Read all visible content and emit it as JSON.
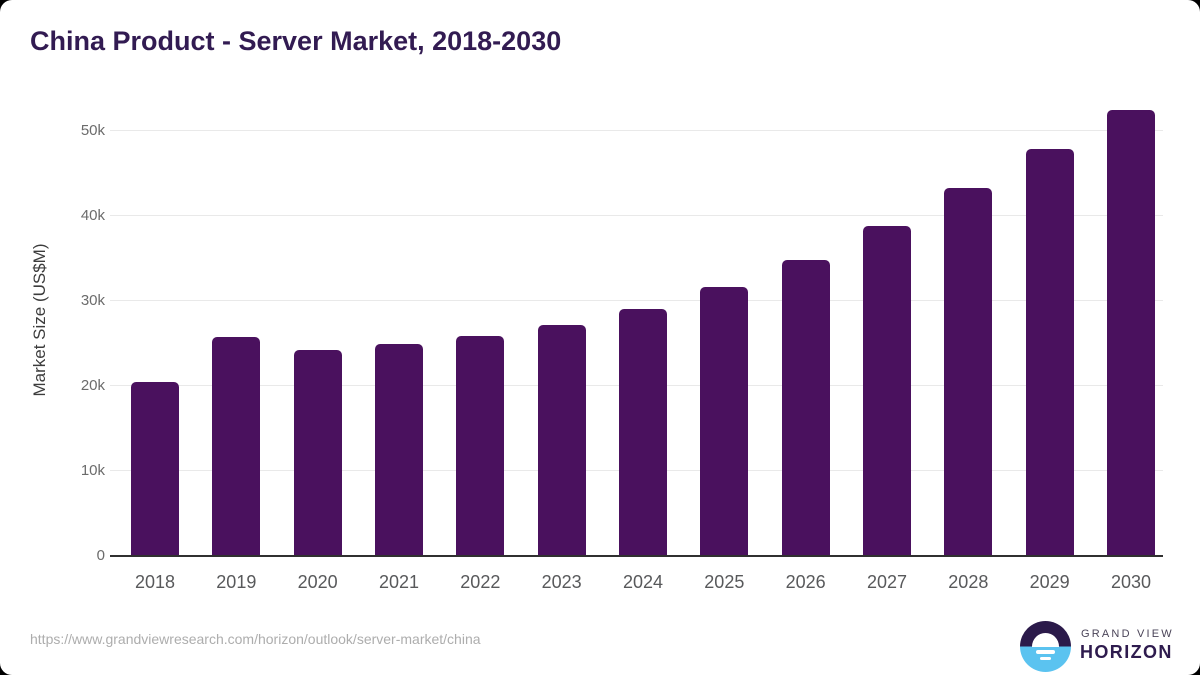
{
  "header": {
    "title": "China Product - Server Market, 2018-2030",
    "title_color": "#321B52"
  },
  "chart_data": {
    "type": "bar",
    "title": "China Product - Server Market, 2018-2030",
    "categories": [
      "2018",
      "2019",
      "2020",
      "2021",
      "2022",
      "2023",
      "2024",
      "2025",
      "2026",
      "2027",
      "2028",
      "2029",
      "2030"
    ],
    "values": [
      20400,
      25700,
      24200,
      24900,
      25800,
      27200,
      29000,
      31600,
      34800,
      38800,
      43300,
      47800,
      52400
    ],
    "xlabel": "",
    "ylabel": "Market Size (US$M)",
    "ylim": [
      0,
      53000
    ],
    "yticks": [
      {
        "value": 0,
        "label": "0"
      },
      {
        "value": 10000,
        "label": "10k"
      },
      {
        "value": 20000,
        "label": "20k"
      },
      {
        "value": 30000,
        "label": "30k"
      },
      {
        "value": 40000,
        "label": "40k"
      },
      {
        "value": 50000,
        "label": "50k"
      }
    ],
    "grid": "horizontal",
    "legend": "none",
    "bar_color": "#4A115E",
    "gridline_color": "#E9E9E9",
    "axis_line_color": "#303030",
    "tick_label_color": "#6B6B6B"
  },
  "footer": {
    "source_url": "https://www.grandviewresearch.com/horizon/outlook/server-market/china",
    "logo": {
      "line1": "GRAND VIEW",
      "line2": "HORIZON",
      "dark_color": "#2B1A4A",
      "blue_color": "#5BC3F0"
    }
  }
}
